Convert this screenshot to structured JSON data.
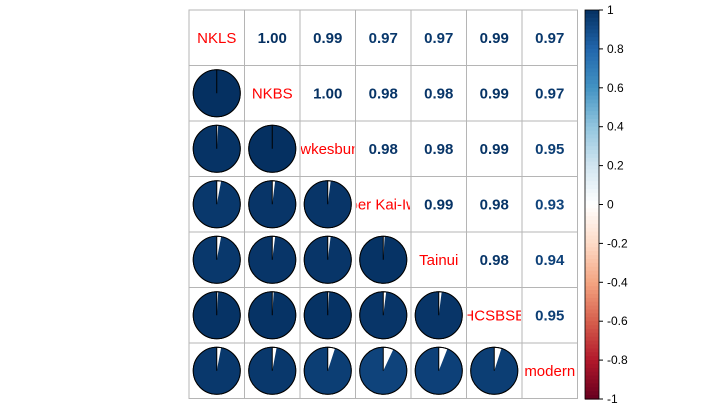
{
  "chart_data": {
    "type": "heatmap",
    "variables": [
      "NKLS",
      "NKBS",
      "Tewkesbury",
      "Upper Kai-Iwi",
      "Tainui",
      "HCSBSB",
      "modern"
    ],
    "visible_labels": [
      "NKLS",
      "NKBS",
      "ewkesbury",
      "per Kai-Iw",
      "Tainui",
      "HCSBSB",
      "modern"
    ],
    "upper_text": [
      [
        "",
        "1.00",
        "0.99",
        "0.97",
        "0.97",
        "0.99",
        "0.97"
      ],
      [
        "",
        "",
        "1.00",
        "0.98",
        "0.98",
        "0.99",
        "0.97"
      ],
      [
        "",
        "",
        "",
        "0.98",
        "0.98",
        "0.99",
        "0.95"
      ],
      [
        "",
        "",
        "",
        "",
        "0.99",
        "0.98",
        "0.93"
      ],
      [
        "",
        "",
        "",
        "",
        "",
        "0.98",
        "0.94"
      ],
      [
        "",
        "",
        "",
        "",
        "",
        "",
        "0.95"
      ],
      [
        "",
        "",
        "",
        "",
        "",
        "",
        ""
      ]
    ],
    "matrix": [
      [
        1.0,
        1.0,
        0.99,
        0.97,
        0.97,
        0.99,
        0.97
      ],
      [
        1.0,
        1.0,
        1.0,
        0.98,
        0.98,
        0.99,
        0.97
      ],
      [
        0.99,
        1.0,
        1.0,
        0.98,
        0.98,
        0.99,
        0.95
      ],
      [
        0.97,
        0.98,
        0.98,
        1.0,
        0.99,
        0.98,
        0.93
      ],
      [
        0.97,
        0.98,
        0.98,
        0.99,
        1.0,
        0.98,
        0.94
      ],
      [
        0.99,
        0.99,
        0.99,
        0.98,
        0.98,
        1.0,
        0.95
      ],
      [
        0.97,
        0.97,
        0.95,
        0.93,
        0.94,
        0.95,
        1.0
      ]
    ],
    "lower_method": "pie",
    "upper_method": "number",
    "diagonal": "variable names",
    "colorbar": {
      "range": [
        -1,
        1
      ],
      "ticks": [
        "1",
        "0.8",
        "0.6",
        "0.4",
        "0.2",
        "0",
        "-0.2",
        "-0.4",
        "-0.6",
        "-0.8",
        "-1"
      ],
      "colors": [
        "#67001F",
        "#B2182B",
        "#D6604D",
        "#F4A582",
        "#FDDBC7",
        "#FFFFFF",
        "#D1E5F0",
        "#92C5DE",
        "#4393C3",
        "#2166AC",
        "#053061"
      ],
      "position": "right"
    },
    "grid": true
  }
}
